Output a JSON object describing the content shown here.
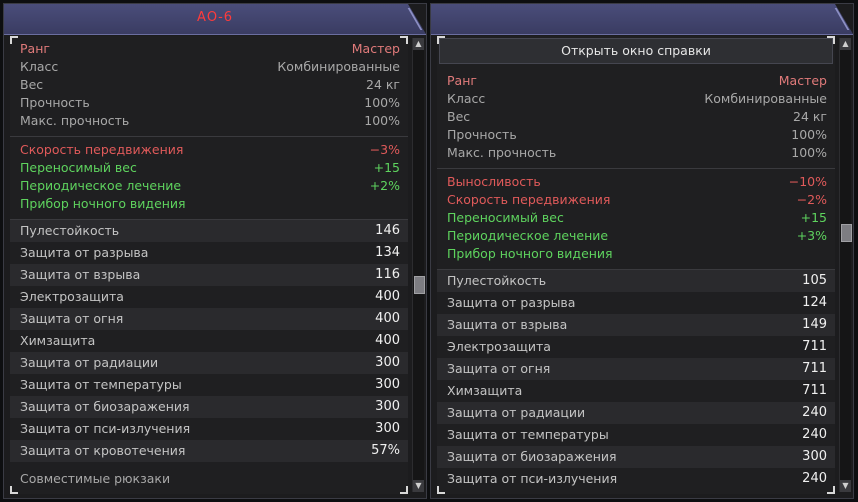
{
  "left": {
    "title": "АО-6",
    "stats": [
      {
        "label": "Ранг",
        "value": "Мастер",
        "cls": "rank"
      },
      {
        "label": "Класс",
        "value": "Комбинированные"
      },
      {
        "label": "Вес",
        "value": "24 кг"
      },
      {
        "label": "Прочность",
        "value": "100%"
      },
      {
        "label": "Макс. прочность",
        "value": "100%"
      }
    ],
    "mods": [
      {
        "label": "Скорость передвижения",
        "value": "−3%",
        "cls": "red"
      },
      {
        "label": "Переносимый вес",
        "value": "+15",
        "cls": "green"
      },
      {
        "label": "Периодическое лечение",
        "value": "+2%",
        "cls": "green"
      },
      {
        "label": "Прибор ночного видения",
        "value": "",
        "cls": "green"
      }
    ],
    "protections": [
      {
        "label": "Пулестойкость",
        "value": "146"
      },
      {
        "label": "Защита от разрыва",
        "value": "134"
      },
      {
        "label": "Защита от взрыва",
        "value": "116"
      },
      {
        "label": "Электрозащита",
        "value": "400"
      },
      {
        "label": "Защита от огня",
        "value": "400"
      },
      {
        "label": "Химзащита",
        "value": "400"
      },
      {
        "label": "Защита от радиации",
        "value": "300"
      },
      {
        "label": "Защита от температуры",
        "value": "300"
      },
      {
        "label": "Защита от биозаражения",
        "value": "300"
      },
      {
        "label": "Защита от пси-излучения",
        "value": "300"
      },
      {
        "label": "Защита от кровотечения",
        "value": "57%"
      }
    ],
    "footer": "Совместимые рюкзаки"
  },
  "right": {
    "help_button": "Открыть окно справки",
    "stats": [
      {
        "label": "Ранг",
        "value": "Мастер",
        "cls": "rank"
      },
      {
        "label": "Класс",
        "value": "Комбинированные"
      },
      {
        "label": "Вес",
        "value": "24 кг"
      },
      {
        "label": "Прочность",
        "value": "100%"
      },
      {
        "label": "Макс. прочность",
        "value": "100%"
      }
    ],
    "mods": [
      {
        "label": "Выносливость",
        "value": "−10%",
        "cls": "red"
      },
      {
        "label": "Скорость передвижения",
        "value": "−2%",
        "cls": "red"
      },
      {
        "label": "Переносимый вес",
        "value": "+15",
        "cls": "green"
      },
      {
        "label": "Периодическое лечение",
        "value": "+3%",
        "cls": "green"
      },
      {
        "label": "Прибор ночного видения",
        "value": "",
        "cls": "green"
      }
    ],
    "protections": [
      {
        "label": "Пулестойкость",
        "value": "105"
      },
      {
        "label": "Защита от разрыва",
        "value": "124"
      },
      {
        "label": "Защита от взрыва",
        "value": "149"
      },
      {
        "label": "Электрозащита",
        "value": "711"
      },
      {
        "label": "Защита от огня",
        "value": "711"
      },
      {
        "label": "Химзащита",
        "value": "711"
      },
      {
        "label": "Защита от радиации",
        "value": "240"
      },
      {
        "label": "Защита от температуры",
        "value": "240"
      },
      {
        "label": "Защита от биозаражения",
        "value": "300"
      },
      {
        "label": "Защита от пси-излучения",
        "value": "240"
      }
    ]
  }
}
